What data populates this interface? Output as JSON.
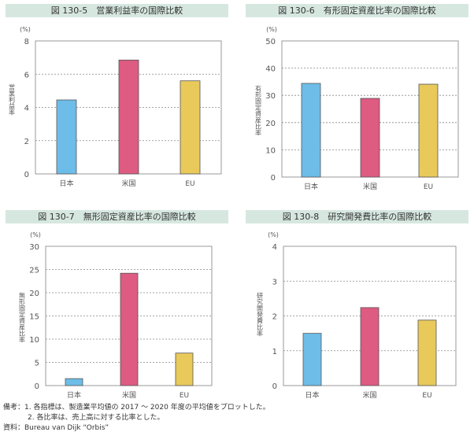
{
  "chart_data": [
    {
      "type": "bar",
      "title": "図 130-5　営業利益率の国際比較",
      "unit": "(%)",
      "ylabel": "営業利益率",
      "categories": [
        "日本",
        "米国",
        "EU"
      ],
      "values": [
        4.45,
        6.85,
        5.6
      ],
      "ylim": [
        0,
        8
      ],
      "yticks": [
        0,
        2,
        4,
        6,
        8
      ],
      "grid": true,
      "colors": [
        "#6dbde8",
        "#de5b81",
        "#e8c95a"
      ]
    },
    {
      "type": "bar",
      "title": "図 130-6　有形固定資産比率の国際比較",
      "unit": "(%)",
      "ylabel": "有形固定資産比率",
      "categories": [
        "日本",
        "米国",
        "EU"
      ],
      "values": [
        34.4,
        28.9,
        34.1
      ],
      "ylim": [
        0,
        50
      ],
      "yticks": [
        0,
        10,
        20,
        30,
        40,
        50
      ],
      "grid": true,
      "colors": [
        "#6dbde8",
        "#de5b81",
        "#e8c95a"
      ]
    },
    {
      "type": "bar",
      "title": "図 130-7　無形固定資産比率の国際比較",
      "unit": "(%)",
      "ylabel": "無形固定資産比率",
      "categories": [
        "日本",
        "米国",
        "EU"
      ],
      "values": [
        1.5,
        24.2,
        7.0
      ],
      "ylim": [
        0,
        30
      ],
      "yticks": [
        0,
        5,
        10,
        15,
        20,
        25,
        30
      ],
      "grid": true,
      "colors": [
        "#6dbde8",
        "#de5b81",
        "#e8c95a"
      ]
    },
    {
      "type": "bar",
      "title": "図 130-8　研究開発費比率の国際比較",
      "unit": "(%)",
      "ylabel": "研究開発費比率",
      "categories": [
        "日本",
        "米国",
        "EU"
      ],
      "values": [
        1.5,
        2.24,
        1.88
      ],
      "ylim": [
        0,
        4
      ],
      "yticks": [
        0,
        1,
        2,
        3,
        4
      ],
      "grid": true,
      "colors": [
        "#6dbde8",
        "#de5b81",
        "#e8c95a"
      ]
    }
  ],
  "notes": {
    "line1": "備考：1. 各指標は、製造業平均値の 2017 ～ 2020 年度の平均値をプロットした。",
    "line2": "2. 各比率は、売上高に対する比率とした。",
    "source": "資料：Bureau van Dijk “Orbis”"
  }
}
